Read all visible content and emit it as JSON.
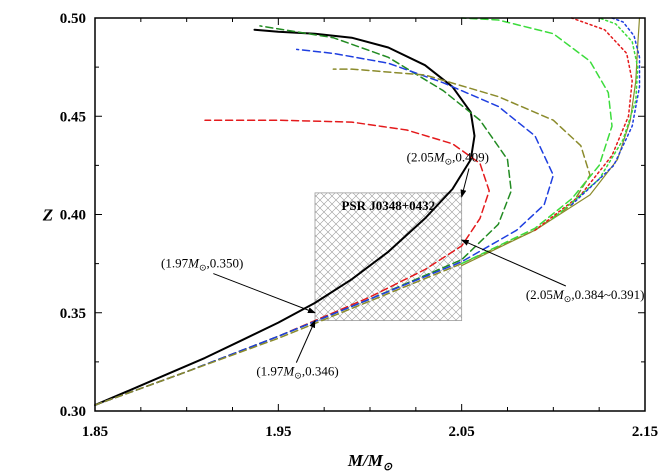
{
  "chart_data": {
    "type": "line",
    "xlabel": "M/M",
    "xlabel_sub": "⊙",
    "ylabel": "Z",
    "xlim": [
      1.85,
      2.15
    ],
    "ylim": [
      0.3,
      0.5
    ],
    "x_ticks": [
      "1.85",
      "1.95",
      "2.05",
      "2.15"
    ],
    "y_ticks": [
      "0.30",
      "0.35",
      "0.40",
      "0.45",
      "0.50"
    ],
    "region": {
      "label": "PSR J0348+0432",
      "x": [
        1.97,
        2.05
      ],
      "y": [
        0.346,
        0.411
      ],
      "color": "#9a9a9a"
    },
    "annotations": [
      {
        "prefix": "(2.05",
        "suffix": ",0.409)",
        "point": [
          2.05,
          0.409
        ],
        "text_at": [
          2.02,
          0.427
        ]
      },
      {
        "prefix": "(1.97",
        "suffix": ",0.350)",
        "point": [
          1.97,
          0.35
        ],
        "text_at": [
          1.886,
          0.373
        ]
      },
      {
        "prefix": "(1.97",
        "suffix": ",0.346)",
        "point": [
          1.97,
          0.346
        ],
        "text_at": [
          1.938,
          0.318
        ]
      },
      {
        "prefix": "(2.05",
        "suffix": ",0.384~0.391)",
        "point": [
          2.05,
          0.387
        ],
        "text_at": [
          2.085,
          0.357
        ]
      }
    ],
    "series": [
      {
        "color": "#000000",
        "dash": "none",
        "width": 2,
        "x": [
          1.85,
          1.87,
          1.89,
          1.91,
          1.93,
          1.95,
          1.97,
          1.99,
          2.01,
          2.03,
          2.045,
          2.055,
          2.057,
          2.055,
          2.045,
          2.03,
          2.01,
          1.99,
          1.97,
          1.95,
          1.937
        ],
        "y": [
          0.303,
          0.311,
          0.319,
          0.327,
          0.336,
          0.345,
          0.355,
          0.367,
          0.381,
          0.398,
          0.413,
          0.428,
          0.44,
          0.452,
          0.465,
          0.476,
          0.485,
          0.49,
          0.492,
          0.493,
          0.494
        ]
      },
      {
        "color": "#e41a1c",
        "dash": "7,4",
        "width": 1.5,
        "x": [
          1.85,
          1.9,
          1.95,
          2.0,
          2.03,
          2.05,
          2.06,
          2.065,
          2.06,
          2.045,
          2.02,
          1.99,
          1.95,
          1.91
        ],
        "y": [
          0.303,
          0.32,
          0.338,
          0.358,
          0.372,
          0.384,
          0.398,
          0.412,
          0.426,
          0.436,
          0.443,
          0.447,
          0.448,
          0.448
        ]
      },
      {
        "color": "#228b22",
        "dash": "7,4",
        "width": 1.5,
        "x": [
          1.85,
          1.9,
          1.95,
          2.0,
          2.05,
          2.07,
          2.077,
          2.075,
          2.06,
          2.04,
          2.01,
          1.98,
          1.94
        ],
        "y": [
          0.303,
          0.32,
          0.338,
          0.357,
          0.377,
          0.395,
          0.412,
          0.428,
          0.448,
          0.463,
          0.48,
          0.49,
          0.496
        ]
      },
      {
        "color": "#1f3fe0",
        "dash": "7,4",
        "width": 1.5,
        "x": [
          1.85,
          1.9,
          1.95,
          2.0,
          2.05,
          2.08,
          2.095,
          2.1,
          2.09,
          2.07,
          2.04,
          2.01,
          1.98,
          1.96
        ],
        "y": [
          0.303,
          0.32,
          0.338,
          0.357,
          0.376,
          0.392,
          0.405,
          0.42,
          0.44,
          0.455,
          0.467,
          0.477,
          0.482,
          0.484
        ]
      },
      {
        "color": "#8b8b2c",
        "dash": "7,4",
        "width": 1.5,
        "x": [
          1.85,
          1.9,
          1.95,
          2.0,
          2.05,
          2.09,
          2.11,
          2.12,
          2.115,
          2.1,
          2.07,
          2.03,
          1.99,
          1.98
        ],
        "y": [
          0.303,
          0.32,
          0.337,
          0.356,
          0.375,
          0.392,
          0.405,
          0.42,
          0.435,
          0.448,
          0.46,
          0.471,
          0.474,
          0.474
        ]
      },
      {
        "color": "#3cdc3c",
        "dash": "7,4",
        "width": 1.5,
        "x": [
          2.05,
          2.09,
          2.11,
          2.125,
          2.132,
          2.13,
          2.12,
          2.1,
          2.07,
          2.05
        ],
        "y": [
          0.375,
          0.393,
          0.408,
          0.425,
          0.445,
          0.462,
          0.478,
          0.492,
          0.499,
          0.5
        ]
      },
      {
        "color": "#8b8b2c",
        "dash": "none",
        "width": 1.2,
        "x": [
          2.05,
          2.09,
          2.12,
          2.135,
          2.142,
          2.145,
          2.146,
          2.147
        ],
        "y": [
          0.374,
          0.392,
          0.41,
          0.428,
          0.448,
          0.468,
          0.486,
          0.5
        ]
      },
      {
        "color": "#e41a1c",
        "dash": "2,3",
        "width": 1.5,
        "x": [
          2.09,
          2.115,
          2.132,
          2.141,
          2.143,
          2.14,
          2.128,
          2.11
        ],
        "y": [
          0.392,
          0.41,
          0.43,
          0.45,
          0.468,
          0.482,
          0.494,
          0.5
        ]
      },
      {
        "color": "#3cdc3c",
        "dash": "2,3",
        "width": 1.5,
        "x": [
          2.1,
          2.125,
          2.138,
          2.145,
          2.146,
          2.143,
          2.134,
          2.125
        ],
        "y": [
          0.398,
          0.418,
          0.438,
          0.458,
          0.475,
          0.488,
          0.497,
          0.5
        ]
      },
      {
        "color": "#1f3fe0",
        "dash": "2,3",
        "width": 1.5,
        "x": [
          2.11,
          2.133,
          2.143,
          2.147,
          2.147,
          2.144,
          2.138,
          2.132
        ],
        "y": [
          0.405,
          0.425,
          0.445,
          0.465,
          0.48,
          0.491,
          0.498,
          0.5
        ]
      }
    ]
  }
}
